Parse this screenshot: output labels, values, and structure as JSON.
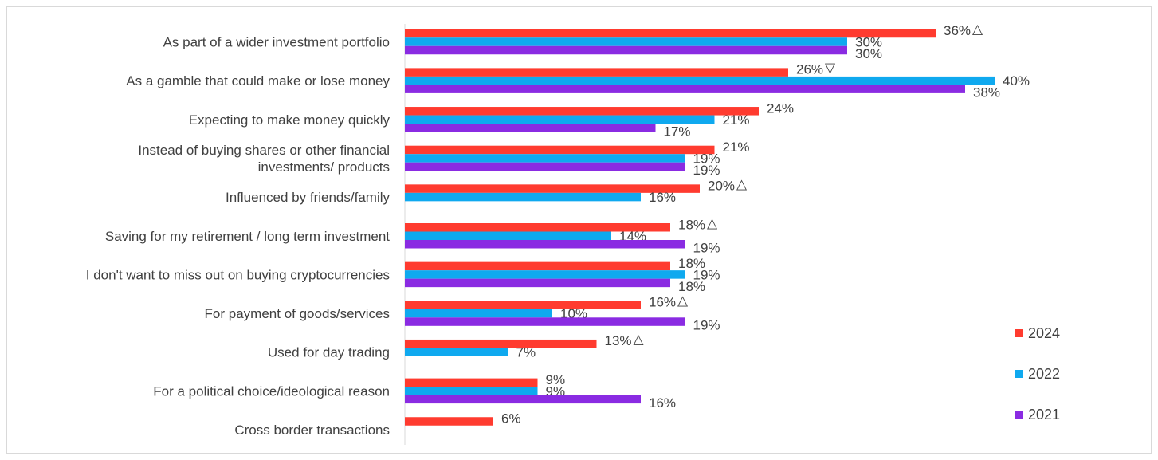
{
  "chart_data": {
    "type": "bar",
    "orientation": "horizontal",
    "categories": [
      "As part of a wider investment portfolio",
      "As a gamble that could make or lose money",
      "Expecting to make money quickly",
      "Instead of buying shares or other financial investments/ products",
      "Influenced by friends/family",
      "Saving for my retirement / long term investment",
      "I don't want to miss out on buying cryptocurrencies",
      "For payment of goods/services",
      "Used for day trading",
      "For a political choice/ideological reason",
      "Cross border transactions"
    ],
    "category_lines": [
      [
        "As part of a wider investment portfolio"
      ],
      [
        "As a gamble that could make or lose money"
      ],
      [
        "Expecting to make money quickly"
      ],
      [
        "Instead of buying shares or other financial",
        "investments/ products"
      ],
      [
        "Influenced by friends/family"
      ],
      [
        "Saving for my retirement / long term investment"
      ],
      [
        "I don't want to miss out on buying cryptocurrencies"
      ],
      [
        "For payment of goods/services"
      ],
      [
        "Used for day trading"
      ],
      [
        "For a political choice/ideological reason"
      ],
      [
        "Cross border transactions"
      ]
    ],
    "series": [
      {
        "name": "2024",
        "color": "#ff3b2f",
        "values": [
          36,
          26,
          24,
          21,
          20,
          18,
          18,
          16,
          13,
          9,
          6
        ],
        "significance": [
          "up",
          "down",
          "",
          "",
          "up",
          "up",
          "",
          "up",
          "up",
          "",
          ""
        ]
      },
      {
        "name": "2022",
        "color": "#0fa9ef",
        "values": [
          30,
          40,
          21,
          19,
          16,
          14,
          19,
          10,
          7,
          9,
          null
        ]
      },
      {
        "name": "2021",
        "color": "#8a2be2",
        "values": [
          30,
          38,
          17,
          19,
          null,
          19,
          18,
          19,
          null,
          16,
          null
        ]
      }
    ],
    "value_suffix": "%",
    "xlim": [
      0,
      40
    ],
    "grid": false,
    "legend_position": "bottom-right",
    "significance_symbols": {
      "up": "△",
      "down": "▽"
    }
  }
}
